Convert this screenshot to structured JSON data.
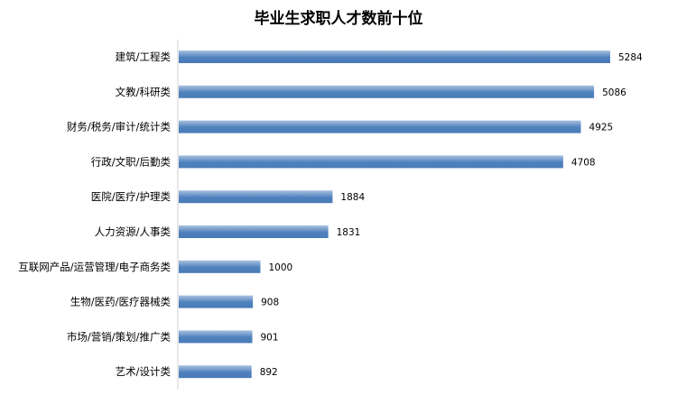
{
  "chart_data": {
    "type": "bar",
    "orientation": "horizontal",
    "title": "毕业生求职人才数前十位",
    "categories": [
      "建筑/工程类",
      "文教/科研类",
      "财务/税务/审计/统计类",
      "行政/文职/后勤类",
      "医院/医疗/护理类",
      "人力资源/人事类",
      "互联网产品/运营管理/电子商务类",
      "生物/医药/医疗器械类",
      "市场/营销/策划/推广类",
      "艺术/设计类"
    ],
    "values": [
      5284,
      5086,
      4925,
      4708,
      1884,
      1831,
      1000,
      908,
      901,
      892
    ],
    "data_labels": true,
    "grid": false,
    "legend": "none",
    "colors": {
      "bar_top": "#9ab6da",
      "bar_mid": "#4f81bd",
      "axis": "#d0d0d0"
    }
  }
}
